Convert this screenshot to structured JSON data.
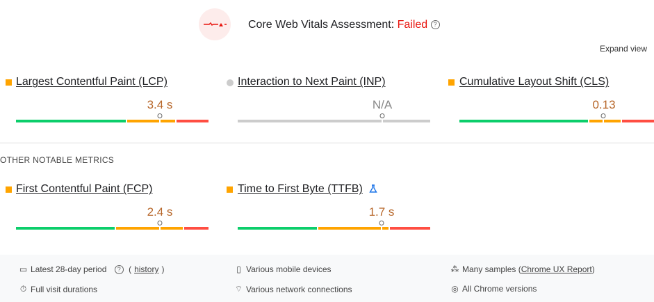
{
  "header": {
    "title": "Core Web Vitals Assessment: ",
    "status": "Failed",
    "help_icon": "?",
    "expand_label": "Expand view"
  },
  "colors": {
    "good": "#0cce6b",
    "needs_improvement": "#ffa400",
    "poor": "#ff4e42",
    "no_data": "#cccccc",
    "failed": "#e8150e"
  },
  "core_metrics": [
    {
      "name": "Largest Contentful Paint (LCP)",
      "value": "3.4 s",
      "status": "needs-improvement"
    },
    {
      "name": "Interaction to Next Paint (INP)",
      "value": "N/A",
      "status": "no-data"
    },
    {
      "name": "Cumulative Layout Shift (CLS)",
      "value": "0.13",
      "status": "needs-improvement"
    }
  ],
  "other_heading": "OTHER NOTABLE METRICS",
  "other_metrics": [
    {
      "name": "First Contentful Paint (FCP)",
      "value": "2.4 s",
      "status": "needs-improvement"
    },
    {
      "name": "Time to First Byte (TTFB)",
      "value": "1.7 s",
      "status": "needs-improvement",
      "badge_icon": "experimental-flask"
    }
  ],
  "footer": {
    "period": "Latest 28-day period",
    "history": "history",
    "devices": "Various mobile devices",
    "samples": "Many samples (",
    "crux": "Chrome UX Report",
    "samples_end": ")",
    "durations": "Full visit durations",
    "network": "Various network connections",
    "versions": "All Chrome versions"
  }
}
